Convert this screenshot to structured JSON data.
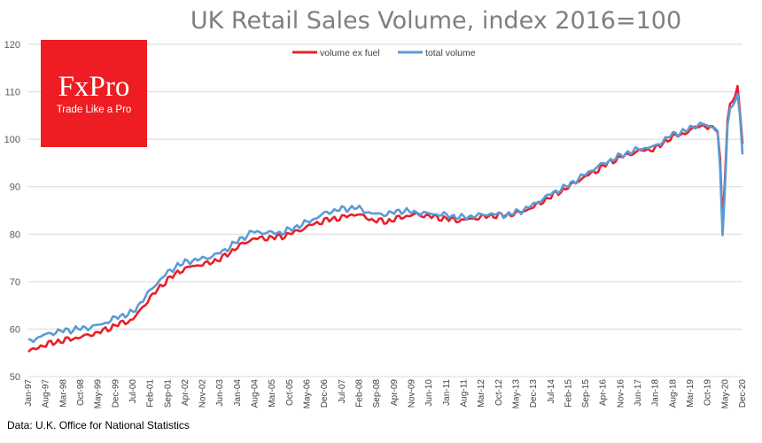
{
  "chart_data": {
    "type": "line",
    "title": "UK Retail Sales Volume, index 2016=100",
    "xlabel": "",
    "ylabel": "",
    "ylim": [
      50,
      120
    ],
    "yticks": [
      50,
      60,
      70,
      80,
      90,
      100,
      110,
      120
    ],
    "x_start": "Jan-97",
    "x_end": "Dec-20",
    "x_tick_labels": [
      "Jan-97",
      "Aug-97",
      "Mar-98",
      "Oct-98",
      "May-99",
      "Dec-99",
      "Jul-00",
      "Feb-01",
      "Sep-01",
      "Apr-02",
      "Nov-02",
      "Jun-03",
      "Jan-04",
      "Aug-04",
      "Mar-05",
      "Oct-05",
      "May-06",
      "Dec-06",
      "Jul-07",
      "Feb-08",
      "Sep-08",
      "Apr-09",
      "Nov-09",
      "Jun-10",
      "Jan-11",
      "Aug-11",
      "Mar-12",
      "Oct-12",
      "May-13",
      "Dec-13",
      "Jul-14",
      "Feb-15",
      "Sep-15",
      "Apr-16",
      "Nov-16",
      "Jun-17",
      "Jan-18",
      "Aug-18",
      "Mar-19",
      "Oct-19",
      "May-20",
      "Dec-20"
    ],
    "grid": true,
    "legend_position": "top-center",
    "series": [
      {
        "name": "volume ex fuel",
        "color": "#e8202a",
        "anchors": [
          [
            "Jan-97",
            55.2
          ],
          [
            "Jul-97",
            56.6
          ],
          [
            "Jan-98",
            57.4
          ],
          [
            "Jul-98",
            58.0
          ],
          [
            "Jan-99",
            58.7
          ],
          [
            "Jul-99",
            59.6
          ],
          [
            "Jan-00",
            61.0
          ],
          [
            "Jul-00",
            62.0
          ],
          [
            "Jan-01",
            66.0
          ],
          [
            "Jul-01",
            69.5
          ],
          [
            "Jan-02",
            72.0
          ],
          [
            "Jul-02",
            73.3
          ],
          [
            "Jan-03",
            73.8
          ],
          [
            "Jul-03",
            75.0
          ],
          [
            "Jan-04",
            77.3
          ],
          [
            "Jul-04",
            79.0
          ],
          [
            "Jan-05",
            79.2
          ],
          [
            "Jul-05",
            79.5
          ],
          [
            "Jan-06",
            80.6
          ],
          [
            "Jul-06",
            82.0
          ],
          [
            "Jan-07",
            83.0
          ],
          [
            "Jul-07",
            83.5
          ],
          [
            "Jan-08",
            84.3
          ],
          [
            "Jul-08",
            83.0
          ],
          [
            "Jan-09",
            82.6
          ],
          [
            "Jul-09",
            83.6
          ],
          [
            "Jan-10",
            84.2
          ],
          [
            "Jul-10",
            83.7
          ],
          [
            "Jan-11",
            83.2
          ],
          [
            "Jul-11",
            82.9
          ],
          [
            "Jan-12",
            83.4
          ],
          [
            "Jul-12",
            83.9
          ],
          [
            "Jan-13",
            84.0
          ],
          [
            "Jul-13",
            84.6
          ],
          [
            "Jan-14",
            86.0
          ],
          [
            "Jul-14",
            88.0
          ],
          [
            "Jan-15",
            89.6
          ],
          [
            "Jul-15",
            91.6
          ],
          [
            "Jan-16",
            93.3
          ],
          [
            "Jul-16",
            95.3
          ],
          [
            "Jan-17",
            96.6
          ],
          [
            "Jul-17",
            97.6
          ],
          [
            "Jan-18",
            98.0
          ],
          [
            "Jul-18",
            100.3
          ],
          [
            "Jan-19",
            101.3
          ],
          [
            "Jul-19",
            103.0
          ],
          [
            "Jan-20",
            102.0
          ],
          [
            "Feb-20",
            101.5
          ],
          [
            "Mar-20",
            96.0
          ],
          [
            "Apr-20",
            82.0
          ],
          [
            "May-20",
            92.0
          ],
          [
            "Jun-20",
            104.0
          ],
          [
            "Jul-20",
            107.5
          ],
          [
            "Aug-20",
            108.0
          ],
          [
            "Sep-20",
            109.0
          ],
          [
            "Oct-20",
            111.2
          ],
          [
            "Nov-20",
            105.5
          ],
          [
            "Dec-20",
            99.0
          ]
        ]
      },
      {
        "name": "total volume",
        "color": "#5b9bd5",
        "anchors": [
          [
            "Jan-97",
            57.3
          ],
          [
            "Jul-97",
            58.7
          ],
          [
            "Jan-98",
            59.5
          ],
          [
            "Jul-98",
            59.9
          ],
          [
            "Jan-99",
            60.3
          ],
          [
            "Jul-99",
            61.1
          ],
          [
            "Jan-00",
            62.6
          ],
          [
            "Jul-00",
            63.5
          ],
          [
            "Jan-01",
            67.5
          ],
          [
            "Jul-01",
            71.0
          ],
          [
            "Jan-02",
            73.5
          ],
          [
            "Jul-02",
            74.5
          ],
          [
            "Jan-03",
            75.0
          ],
          [
            "Jul-03",
            76.3
          ],
          [
            "Jan-04",
            78.5
          ],
          [
            "Jul-04",
            80.5
          ],
          [
            "Jan-05",
            80.3
          ],
          [
            "Jul-05",
            80.3
          ],
          [
            "Jan-06",
            81.6
          ],
          [
            "Jul-06",
            83.0
          ],
          [
            "Jan-07",
            84.6
          ],
          [
            "Jul-07",
            85.3
          ],
          [
            "Jan-08",
            85.6
          ],
          [
            "Jul-08",
            84.3
          ],
          [
            "Jan-09",
            84.2
          ],
          [
            "Jul-09",
            85.0
          ],
          [
            "Jan-10",
            84.5
          ],
          [
            "Jul-10",
            84.3
          ],
          [
            "Jan-11",
            84.0
          ],
          [
            "Jul-11",
            83.5
          ],
          [
            "Jan-12",
            83.9
          ],
          [
            "Jul-12",
            84.3
          ],
          [
            "Jan-13",
            84.0
          ],
          [
            "Jul-13",
            84.9
          ],
          [
            "Jan-14",
            86.5
          ],
          [
            "Jul-14",
            88.5
          ],
          [
            "Jan-15",
            90.0
          ],
          [
            "Jul-15",
            92.0
          ],
          [
            "Jan-16",
            94.0
          ],
          [
            "Jul-16",
            95.6
          ],
          [
            "Jan-17",
            97.0
          ],
          [
            "Jul-17",
            98.0
          ],
          [
            "Jan-18",
            98.5
          ],
          [
            "Jul-18",
            100.8
          ],
          [
            "Jan-19",
            101.8
          ],
          [
            "Jul-19",
            103.3
          ],
          [
            "Jan-20",
            102.3
          ],
          [
            "Feb-20",
            101.7
          ],
          [
            "Mar-20",
            94.0
          ],
          [
            "Apr-20",
            79.8
          ],
          [
            "May-20",
            90.0
          ],
          [
            "Jun-20",
            103.0
          ],
          [
            "Jul-20",
            106.5
          ],
          [
            "Aug-20",
            107.0
          ],
          [
            "Sep-20",
            108.0
          ],
          [
            "Oct-20",
            109.5
          ],
          [
            "Nov-20",
            104.8
          ],
          [
            "Dec-20",
            96.8
          ]
        ]
      }
    ]
  },
  "logo": {
    "brand": "FxPro",
    "tagline": "Trade Like a Pro",
    "color": "#ee1d23"
  },
  "source_note": "Data: U.K. Office for National Statistics",
  "colors": {
    "grid": "#d9d9d9",
    "title": "#7f7f7f"
  }
}
